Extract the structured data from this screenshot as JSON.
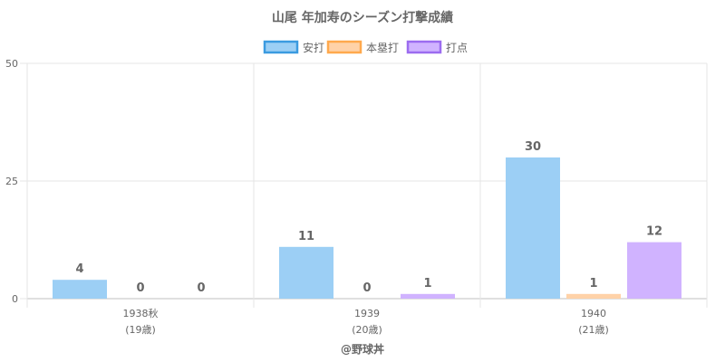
{
  "chart_data": {
    "type": "bar",
    "title": "山尾 年加寿のシーズン打撃成績",
    "categories": [
      [
        "1938秋",
        "(19歳)"
      ],
      [
        "1939",
        "(20歳)"
      ],
      [
        "1940",
        "(21歳)"
      ]
    ],
    "series": [
      {
        "name": "安打",
        "values": [
          4,
          11,
          30
        ],
        "color": "#9ccff5",
        "legend_border": "#3b9be0"
      },
      {
        "name": "本塁打",
        "values": [
          0,
          0,
          1
        ],
        "color": "#ffd2a8",
        "legend_border": "#ffa94d"
      },
      {
        "name": "打点",
        "values": [
          0,
          1,
          12
        ],
        "color": "#d0b3ff",
        "legend_border": "#9c6cf0"
      }
    ],
    "yticks": [
      0,
      25,
      50
    ],
    "ylim": [
      0,
      50
    ],
    "grid": true,
    "legend_position": "top-center",
    "xlabel": "",
    "ylabel": "",
    "credit": "@野球丼"
  }
}
